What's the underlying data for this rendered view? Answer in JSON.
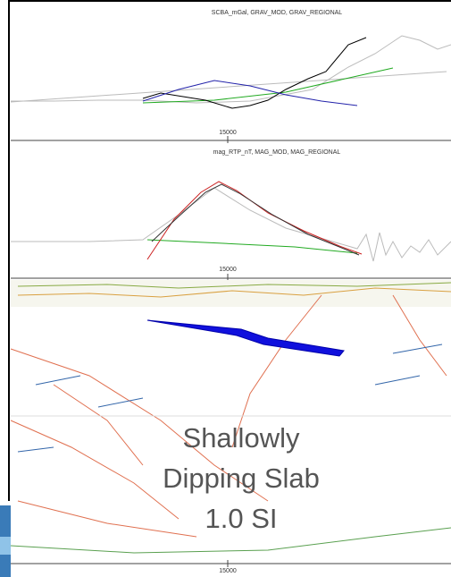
{
  "panels": [
    {
      "title": "SCBA_mGal, GRAV_MOD, GRAV_REGIONAL",
      "tick_label": "15000"
    },
    {
      "title": "mag_RTP_nT, MAG_MOD, MAG_REGIONAL",
      "tick_label": "15000"
    },
    {
      "tick_label": "15000"
    }
  ],
  "annotation": {
    "lines": [
      "Shallowly",
      "Dipping Slab",
      "1.0 SI"
    ]
  }
}
